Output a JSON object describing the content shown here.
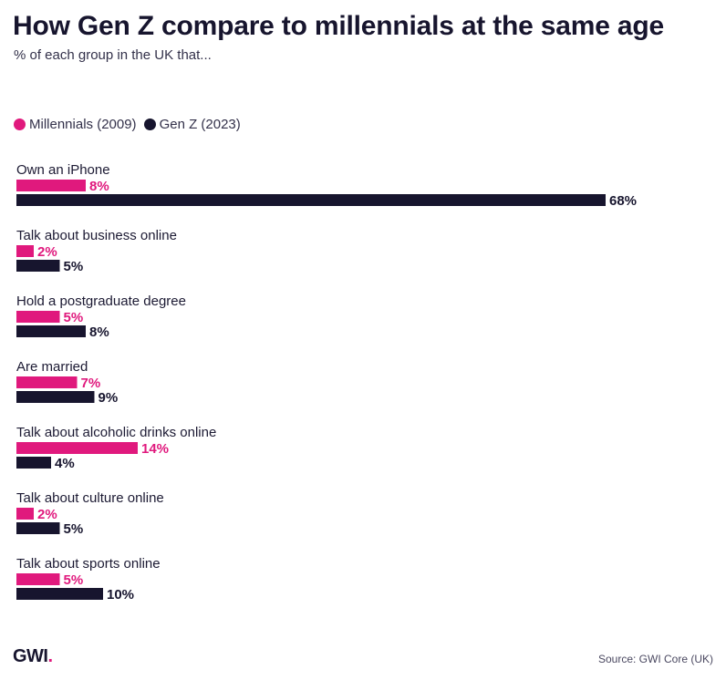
{
  "title": "How Gen Z compare to millennials at the same age",
  "subtitle": "% of each group in the UK that...",
  "legend": [
    {
      "label": "Millennials (2009)",
      "color": "#e0197d"
    },
    {
      "label": "Gen Z (2023)",
      "color": "#17152e"
    }
  ],
  "chart_data": {
    "type": "bar",
    "orientation": "horizontal",
    "title": "How Gen Z compare to millennials at the same age",
    "subtitle": "% of each group in the UK that...",
    "unit": "%",
    "categories": [
      "Own an iPhone",
      "Talk about business online",
      "Hold a postgraduate degree",
      "Are married",
      "Talk about alcoholic drinks online",
      "Talk about culture online",
      "Talk about sports online"
    ],
    "series": [
      {
        "name": "Millennials (2009)",
        "color": "#e0197d",
        "values": [
          8,
          2,
          5,
          7,
          14,
          2,
          5
        ]
      },
      {
        "name": "Gen Z (2023)",
        "color": "#17152e",
        "values": [
          68,
          5,
          8,
          9,
          4,
          5,
          10
        ]
      }
    ],
    "xlim": [
      0,
      68
    ],
    "legend_position": "top-left",
    "grid": false
  },
  "footer": {
    "logo_text": "GWI",
    "logo_dot": ".",
    "source": "Source: GWI Core (UK)"
  }
}
